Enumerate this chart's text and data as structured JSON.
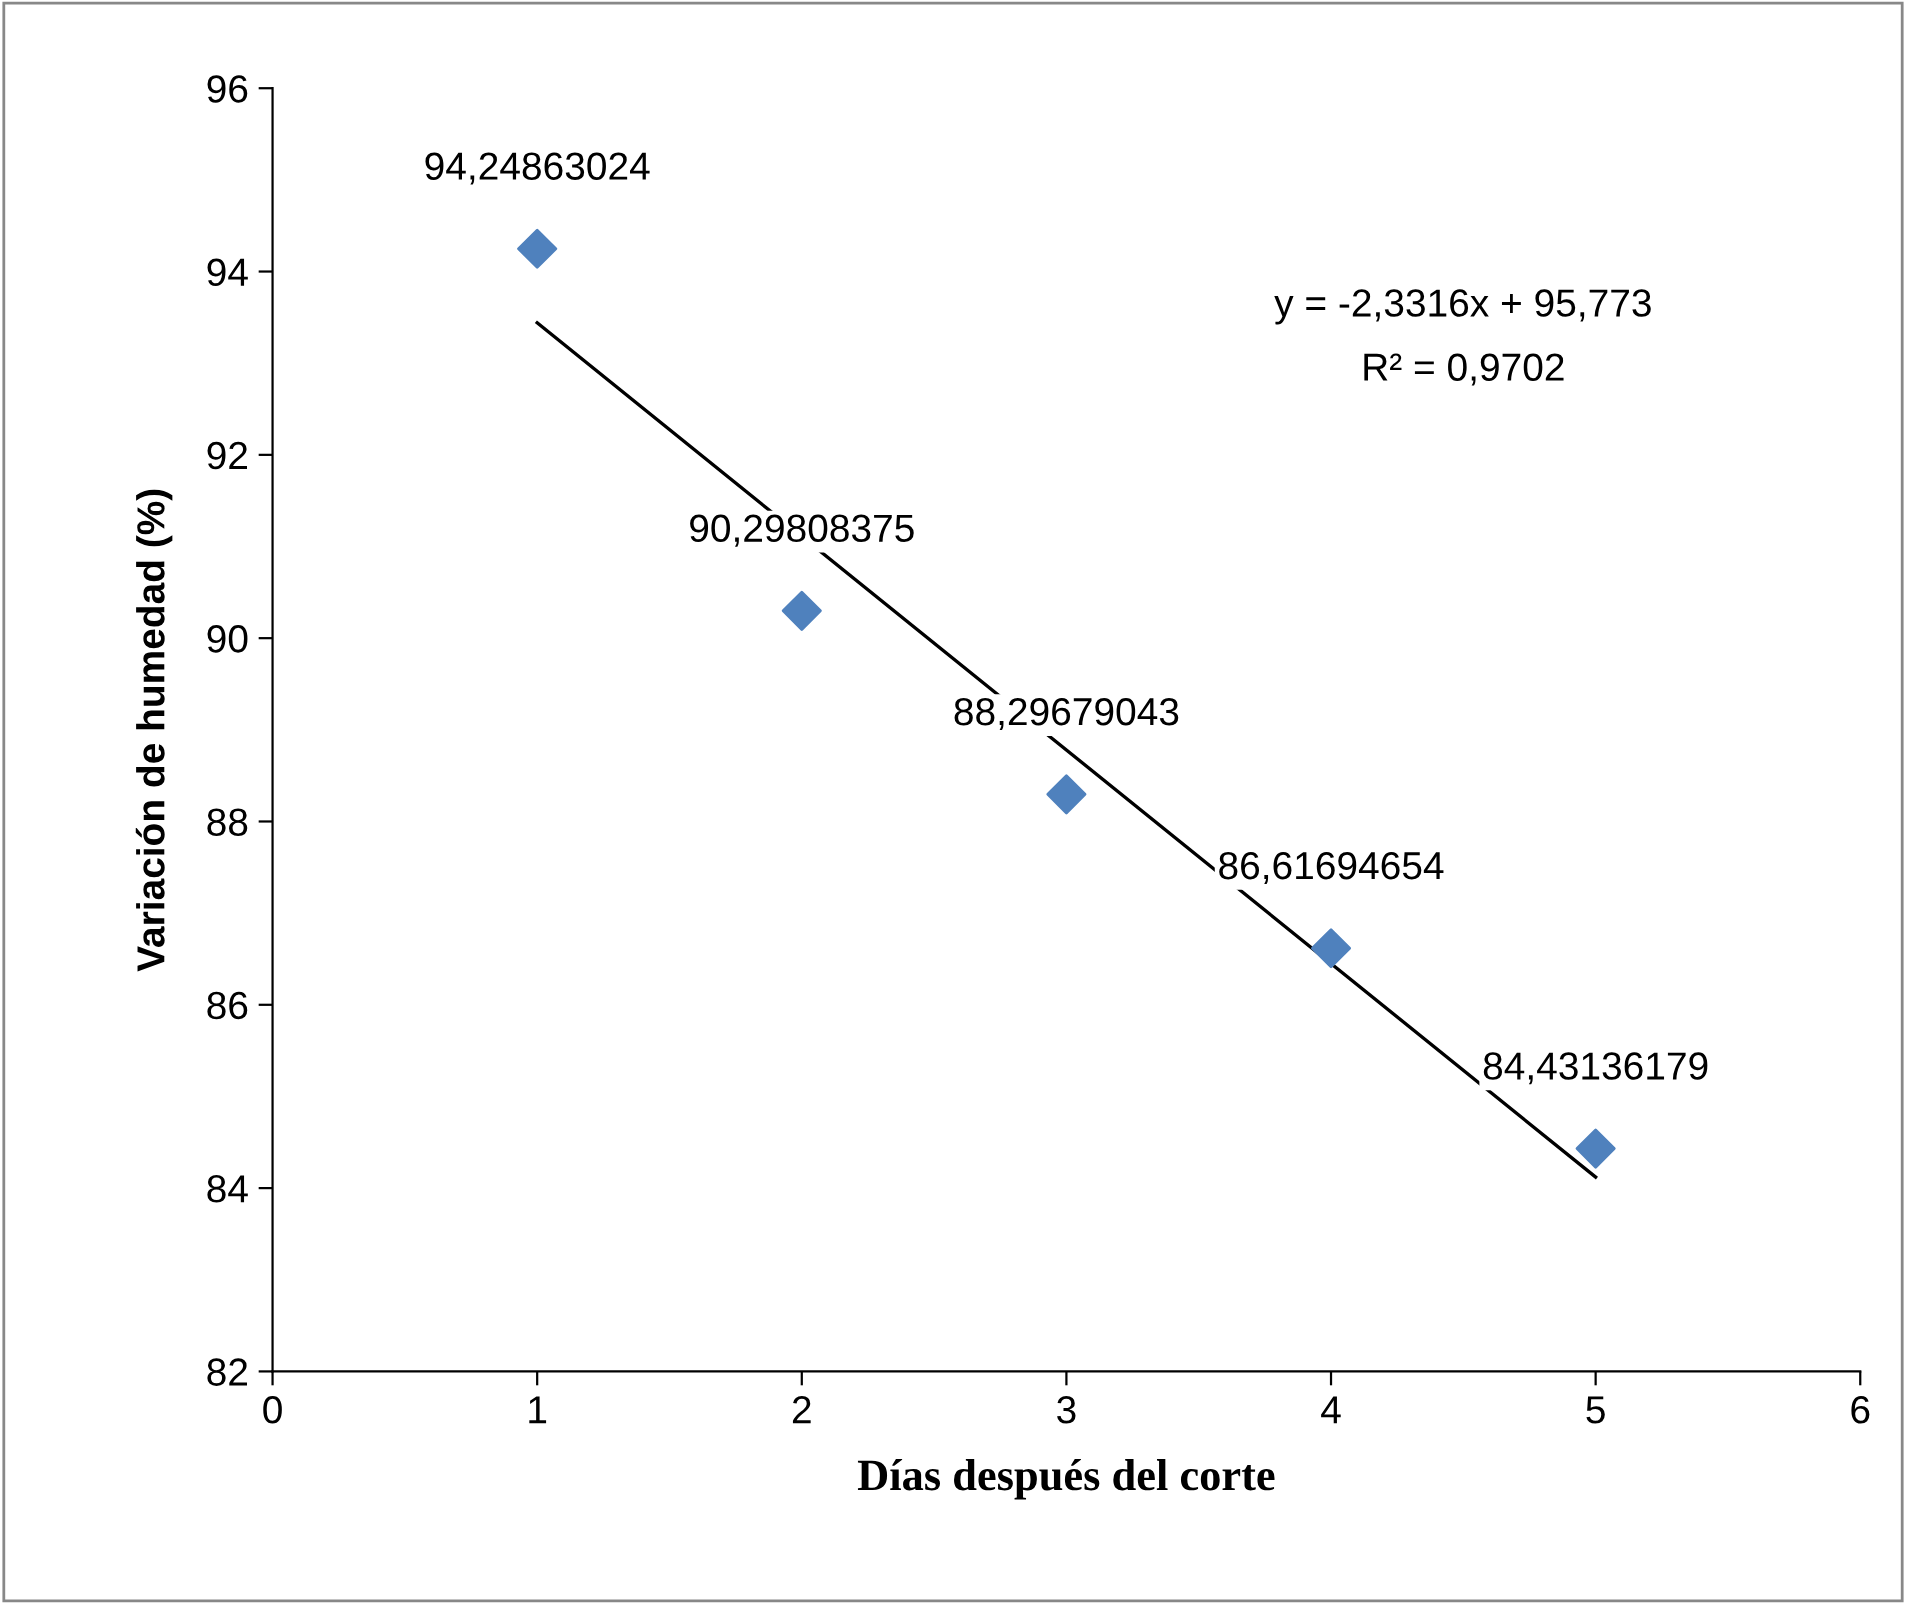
{
  "chart_data": {
    "type": "scatter",
    "xlabel": "Días después del corte",
    "ylabel": "Variación de humedad (%)",
    "xlim": [
      0,
      6
    ],
    "xticks": [
      0,
      1,
      2,
      3,
      4,
      5,
      6
    ],
    "ylim": [
      82,
      96
    ],
    "yticks": [
      82,
      84,
      86,
      88,
      90,
      92,
      94,
      96
    ],
    "grid": false,
    "legend": false,
    "marker": "diamond",
    "series": [
      {
        "color": "#4f81bd",
        "x": [
          1,
          2,
          3,
          4,
          5
        ],
        "values": [
          94.24863024,
          90.29808375,
          88.29679043,
          86.61694654,
          84.43136179
        ],
        "value_labels": [
          "94,24863024",
          "90,29808375",
          "88,29679043",
          "86,61694654",
          "84,43136179"
        ]
      },
      {
        "type": "line",
        "color": "#000000",
        "x": [
          1,
          5
        ],
        "values": [
          93.44,
          84.12
        ],
        "line_style": "solid",
        "marker": "none"
      }
    ],
    "annotations": [
      "y = -2,3316x + 95,773",
      "R² = 0,9702"
    ]
  }
}
